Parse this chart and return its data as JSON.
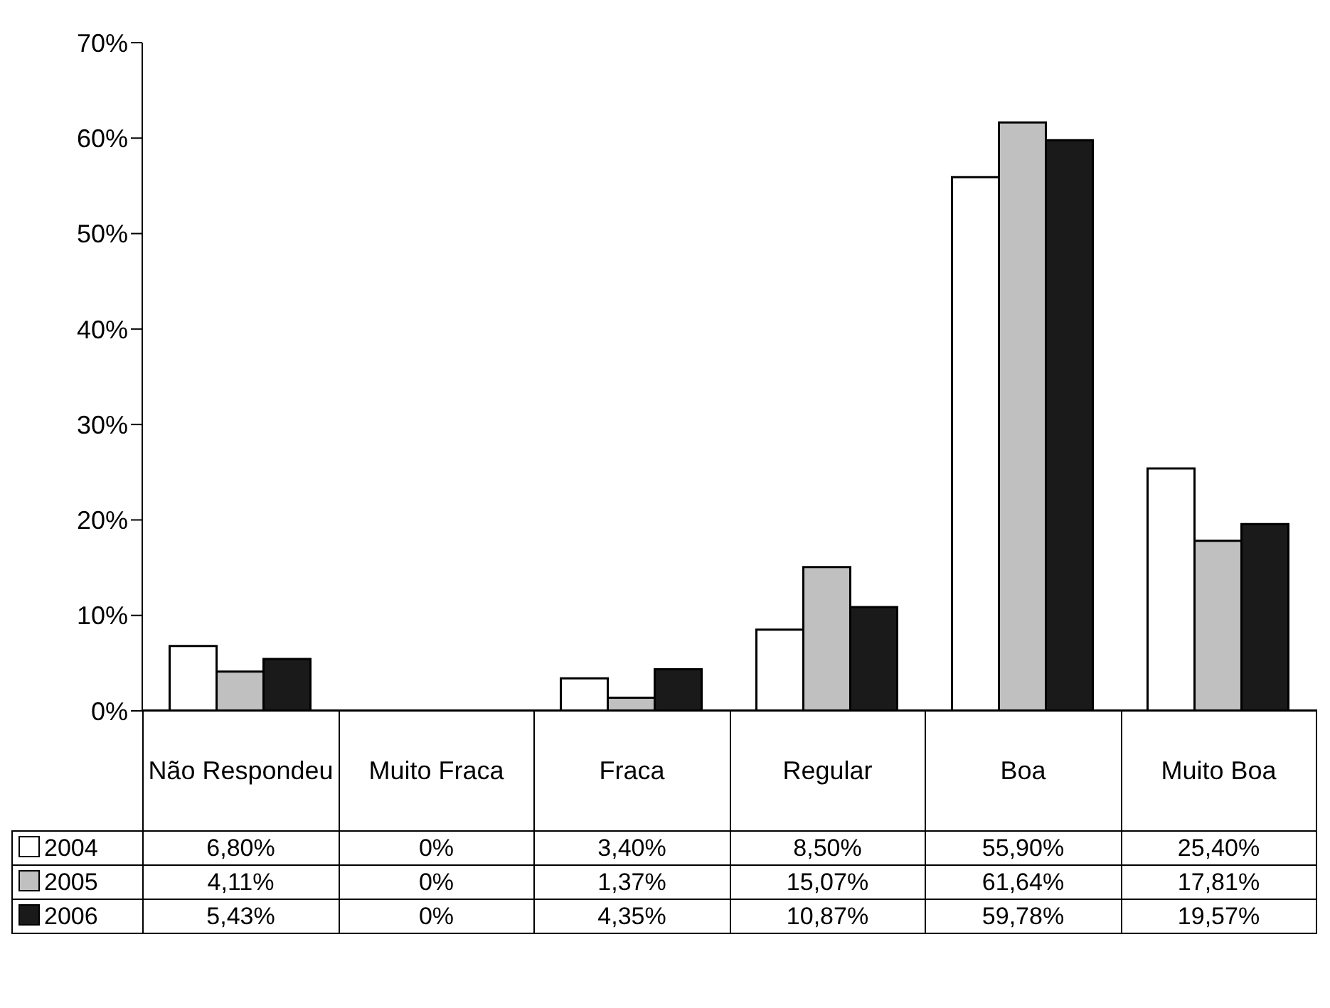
{
  "chart_data": {
    "type": "bar",
    "categories": [
      "Não Respondeu",
      "Muito Fraca",
      "Fraca",
      "Regular",
      "Boa",
      "Muito Boa"
    ],
    "series": [
      {
        "name": "2004",
        "color": "#ffffff",
        "values": [
          6.8,
          0,
          3.4,
          8.5,
          55.9,
          25.4
        ],
        "value_labels": [
          "6,80%",
          "0%",
          "3,40%",
          "8,50%",
          "55,90%",
          "25,40%"
        ]
      },
      {
        "name": "2005",
        "color": "#c0c0c0",
        "values": [
          4.11,
          0,
          1.37,
          15.07,
          61.64,
          17.81
        ],
        "value_labels": [
          "4,11%",
          "0%",
          "1,37%",
          "15,07%",
          "61,64%",
          "17,81%"
        ]
      },
      {
        "name": "2006",
        "color": "#1a1a1a",
        "values": [
          5.43,
          0,
          4.35,
          10.87,
          59.78,
          19.57
        ],
        "value_labels": [
          "5,43%",
          "0%",
          "4,35%",
          "10,87%",
          "59,78%",
          "19,57%"
        ]
      }
    ],
    "ylim": [
      0,
      70
    ],
    "yticks": [
      {
        "value": 0,
        "label": "0%"
      },
      {
        "value": 10,
        "label": "10%"
      },
      {
        "value": 20,
        "label": "20%"
      },
      {
        "value": 30,
        "label": "30%"
      },
      {
        "value": 40,
        "label": "40%"
      },
      {
        "value": 50,
        "label": "50%"
      },
      {
        "value": 60,
        "label": "60%"
      },
      {
        "value": 70,
        "label": "70%"
      }
    ],
    "grid": false,
    "legend": "bottom left"
  }
}
